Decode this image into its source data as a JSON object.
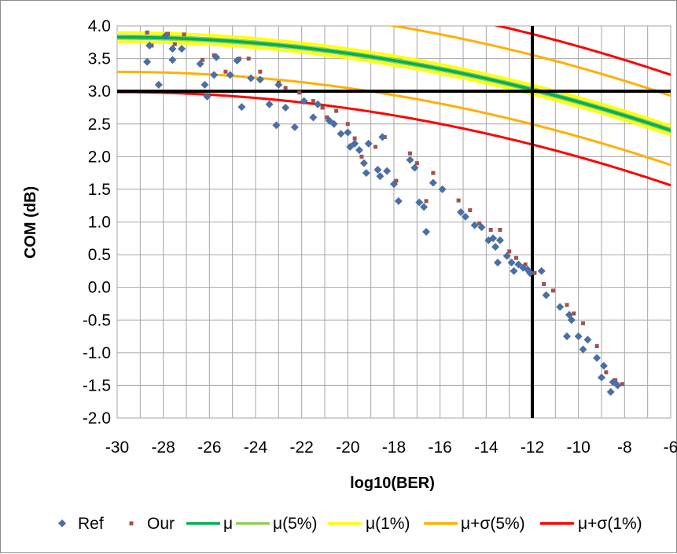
{
  "chart_data": {
    "type": "scatter",
    "title": "",
    "xlabel": "log10(BER)",
    "ylabel": "COM (dB)",
    "xlim": [
      -30,
      -6
    ],
    "ylim": [
      -2.0,
      4.0
    ],
    "x_ticks": [
      -30,
      -28,
      -26,
      -24,
      -22,
      -20,
      -18,
      -16,
      -14,
      -12,
      -10,
      -8,
      -6
    ],
    "y_ticks": [
      4.0,
      3.5,
      3.0,
      2.5,
      2.0,
      1.5,
      1.0,
      0.5,
      0.0,
      -0.5,
      -1.0,
      -1.5,
      -2.0
    ],
    "x_tick_labels": [
      "-30",
      "-28",
      "-26",
      "-24",
      "-22",
      "-20",
      "-18",
      "-16",
      "-14",
      "-12",
      "-10",
      "-8",
      "-6"
    ],
    "y_tick_labels": [
      "4.0",
      "3.5",
      "3.0",
      "2.5",
      "2.0",
      "1.5",
      "1.0",
      "0.5",
      "0.0",
      "-0.5",
      "-1.0",
      "-1.5",
      "-2.0"
    ],
    "grid": true,
    "legend_position": "bottom",
    "reference_lines": {
      "y": 3.0,
      "x": -12
    },
    "series": [
      {
        "name": "Ref",
        "kind": "scatter",
        "marker": "diamond",
        "color": "#4a6fa5",
        "points": [
          [
            -28.7,
            3.45
          ],
          [
            -28.6,
            3.7
          ],
          [
            -28.2,
            3.1
          ],
          [
            -27.9,
            3.85
          ],
          [
            -27.6,
            3.65
          ],
          [
            -27.6,
            3.48
          ],
          [
            -27.2,
            3.65
          ],
          [
            -26.4,
            3.42
          ],
          [
            -26.2,
            3.1
          ],
          [
            -26.1,
            2.92
          ],
          [
            -25.8,
            3.25
          ],
          [
            -25.7,
            3.52
          ],
          [
            -25.1,
            3.25
          ],
          [
            -24.8,
            3.47
          ],
          [
            -24.6,
            2.76
          ],
          [
            -24.2,
            3.2
          ],
          [
            -23.8,
            3.18
          ],
          [
            -23.4,
            2.8
          ],
          [
            -23.1,
            2.48
          ],
          [
            -23.0,
            3.1
          ],
          [
            -22.7,
            2.75
          ],
          [
            -22.3,
            2.45
          ],
          [
            -21.9,
            2.85
          ],
          [
            -21.5,
            2.6
          ],
          [
            -21.3,
            2.8
          ],
          [
            -20.8,
            2.55
          ],
          [
            -20.6,
            2.5
          ],
          [
            -20.3,
            2.35
          ],
          [
            -20.0,
            2.37
          ],
          [
            -19.9,
            2.15
          ],
          [
            -19.7,
            2.2
          ],
          [
            -19.5,
            2.1
          ],
          [
            -19.3,
            1.9
          ],
          [
            -19.2,
            1.75
          ],
          [
            -19.1,
            2.2
          ],
          [
            -18.7,
            1.8
          ],
          [
            -18.6,
            1.7
          ],
          [
            -18.5,
            2.3
          ],
          [
            -18.3,
            1.78
          ],
          [
            -18.0,
            1.58
          ],
          [
            -17.8,
            1.32
          ],
          [
            -17.3,
            1.95
          ],
          [
            -17.1,
            1.83
          ],
          [
            -16.9,
            1.3
          ],
          [
            -16.7,
            1.23
          ],
          [
            -16.6,
            0.85
          ],
          [
            -16.3,
            1.6
          ],
          [
            -15.9,
            1.5
          ],
          [
            -15.1,
            1.15
          ],
          [
            -14.9,
            1.08
          ],
          [
            -14.5,
            0.95
          ],
          [
            -14.2,
            0.92
          ],
          [
            -13.9,
            0.72
          ],
          [
            -13.7,
            0.75
          ],
          [
            -13.6,
            0.62
          ],
          [
            -13.5,
            0.38
          ],
          [
            -13.4,
            0.72
          ],
          [
            -13.1,
            0.48
          ],
          [
            -12.9,
            0.38
          ],
          [
            -12.8,
            0.25
          ],
          [
            -12.6,
            0.35
          ],
          [
            -12.4,
            0.3
          ],
          [
            -12.2,
            0.27
          ],
          [
            -12.1,
            0.22
          ],
          [
            -11.6,
            0.25
          ],
          [
            -11.4,
            -0.12
          ],
          [
            -10.8,
            -0.3
          ],
          [
            -10.5,
            -0.75
          ],
          [
            -10.4,
            -0.42
          ],
          [
            -10.3,
            -0.5
          ],
          [
            -10.0,
            -0.75
          ],
          [
            -9.8,
            -0.95
          ],
          [
            -9.6,
            -0.8
          ],
          [
            -9.2,
            -1.08
          ],
          [
            -9.0,
            -1.38
          ],
          [
            -8.9,
            -1.2
          ],
          [
            -8.6,
            -1.6
          ],
          [
            -8.5,
            -1.45
          ],
          [
            -8.3,
            -1.5
          ]
        ]
      },
      {
        "name": "Our",
        "kind": "scatter",
        "marker": "square",
        "color": "#a0524d",
        "points": [
          [
            -28.7,
            3.9
          ],
          [
            -28.5,
            3.7
          ],
          [
            -27.8,
            3.88
          ],
          [
            -27.5,
            3.72
          ],
          [
            -27.1,
            3.87
          ],
          [
            -26.3,
            3.48
          ],
          [
            -25.8,
            3.55
          ],
          [
            -25.3,
            3.3
          ],
          [
            -24.7,
            3.5
          ],
          [
            -24.3,
            3.5
          ],
          [
            -23.8,
            3.3
          ],
          [
            -23.0,
            3.13
          ],
          [
            -22.7,
            3.05
          ],
          [
            -22.1,
            2.98
          ],
          [
            -21.5,
            2.85
          ],
          [
            -21.1,
            2.75
          ],
          [
            -20.9,
            2.6
          ],
          [
            -20.5,
            2.7
          ],
          [
            -20.0,
            2.5
          ],
          [
            -19.7,
            2.28
          ],
          [
            -19.4,
            2.0
          ],
          [
            -18.8,
            2.15
          ],
          [
            -18.4,
            2.3
          ],
          [
            -17.9,
            1.63
          ],
          [
            -17.3,
            2.05
          ],
          [
            -17.0,
            1.9
          ],
          [
            -16.6,
            1.32
          ],
          [
            -16.3,
            1.75
          ],
          [
            -15.2,
            1.33
          ],
          [
            -14.7,
            1.18
          ],
          [
            -14.3,
            0.98
          ],
          [
            -13.8,
            0.88
          ],
          [
            -13.4,
            0.88
          ],
          [
            -13.0,
            0.55
          ],
          [
            -12.7,
            0.45
          ],
          [
            -12.3,
            0.35
          ],
          [
            -11.9,
            0.22
          ],
          [
            -11.5,
            0.05
          ],
          [
            -11.1,
            -0.05
          ],
          [
            -10.5,
            -0.27
          ],
          [
            -10.2,
            -0.4
          ],
          [
            -9.8,
            -0.55
          ],
          [
            -9.2,
            -0.9
          ],
          [
            -8.8,
            -1.3
          ],
          [
            -8.4,
            -1.42
          ],
          [
            -8.1,
            -1.48
          ]
        ]
      },
      {
        "name": "μ",
        "kind": "curve",
        "color": "#00b050",
        "width": 3.6,
        "curve": {
          "a": 1.6,
          "b": -0.1485,
          "c": -0.002475
        }
      },
      {
        "name": "μ(5%)",
        "kind": "curve",
        "color": "#92d050",
        "width": 3.6,
        "curve_pair": [
          {
            "a": 1.58,
            "b": -0.1485,
            "c": -0.002475
          },
          {
            "a": 1.62,
            "b": -0.1485,
            "c": -0.002475
          }
        ]
      },
      {
        "name": "μ(1%)",
        "kind": "curve",
        "color": "#ffff00",
        "width": 3.6,
        "curve_pair": [
          {
            "a": 1.53,
            "b": -0.1485,
            "c": -0.002475
          },
          {
            "a": 1.67,
            "b": -0.1485,
            "c": -0.002475
          }
        ]
      },
      {
        "name": "μ+σ(5%)",
        "kind": "curve",
        "color": "#ffb000",
        "width": 3,
        "curve_pair": [
          {
            "a": 1.07,
            "b": -0.1485,
            "c": -0.002475
          },
          {
            "a": 2.13,
            "b": -0.1485,
            "c": -0.002475
          }
        ]
      },
      {
        "name": "μ+σ(1%)",
        "kind": "curve",
        "color": "#ff0000",
        "width": 3,
        "curve_pair": [
          {
            "a": 0.76,
            "b": -0.1485,
            "c": -0.002475
          },
          {
            "a": 2.45,
            "b": -0.1485,
            "c": -0.002475
          }
        ]
      }
    ]
  }
}
